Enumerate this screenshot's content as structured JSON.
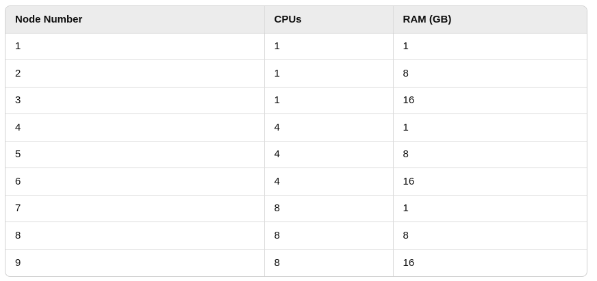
{
  "table": {
    "headers": [
      "Node Number",
      "CPUs",
      "RAM (GB)"
    ],
    "rows": [
      [
        "1",
        "1",
        "1"
      ],
      [
        "2",
        "1",
        "8"
      ],
      [
        "3",
        "1",
        "16"
      ],
      [
        "4",
        "4",
        "1"
      ],
      [
        "5",
        "4",
        "8"
      ],
      [
        "6",
        "4",
        "16"
      ],
      [
        "7",
        "8",
        "1"
      ],
      [
        "8",
        "8",
        "8"
      ],
      [
        "9",
        "8",
        "16"
      ]
    ]
  }
}
